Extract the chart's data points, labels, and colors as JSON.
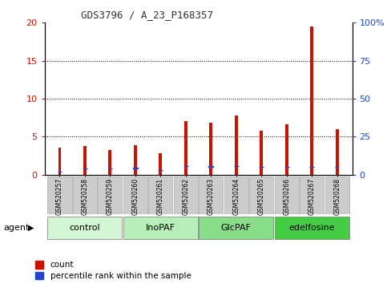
{
  "title": "GDS3796 / A_23_P168357",
  "samples": [
    "GSM520257",
    "GSM520258",
    "GSM520259",
    "GSM520260",
    "GSM520261",
    "GSM520262",
    "GSM520263",
    "GSM520264",
    "GSM520265",
    "GSM520266",
    "GSM520267",
    "GSM520268"
  ],
  "red_values": [
    3.6,
    3.8,
    3.2,
    3.9,
    2.8,
    7.0,
    6.8,
    7.8,
    5.8,
    6.6,
    19.5,
    6.0
  ],
  "blue_values": [
    2.0,
    4.2,
    4.1,
    4.3,
    2.9,
    5.8,
    5.3,
    5.6,
    5.1,
    5.2,
    5.0,
    5.2
  ],
  "groups": [
    {
      "label": "control",
      "start": 0,
      "end": 3,
      "color": "#d4f5d4"
    },
    {
      "label": "InoPAF",
      "start": 3,
      "end": 6,
      "color": "#b8efb8"
    },
    {
      "label": "GlcPAF",
      "start": 6,
      "end": 9,
      "color": "#88dd88"
    },
    {
      "label": "edelfosine",
      "start": 9,
      "end": 12,
      "color": "#44cc44"
    }
  ],
  "ylim_left": [
    0,
    20
  ],
  "ylim_right": [
    0,
    100
  ],
  "yticks_left": [
    0,
    5,
    10,
    15,
    20
  ],
  "yticks_right": [
    0,
    25,
    50,
    75,
    100
  ],
  "ytick_labels_left": [
    "0",
    "5",
    "10",
    "15",
    "20"
  ],
  "ytick_labels_right": [
    "0",
    "25",
    "50",
    "75",
    "100%"
  ],
  "bar_width": 0.12,
  "blue_sq_size": 0.18,
  "red_color": "#cc1100",
  "blue_color": "#2244cc",
  "agent_label": "agent",
  "legend_red": "count",
  "legend_blue": "percentile rank within the sample",
  "grid_lines": [
    5,
    10,
    15
  ],
  "title_color": "#333333",
  "left_tick_color": "#cc1100",
  "right_tick_color": "#2244cc",
  "xtick_bg": "#cccccc",
  "xtick_border": "#999999"
}
